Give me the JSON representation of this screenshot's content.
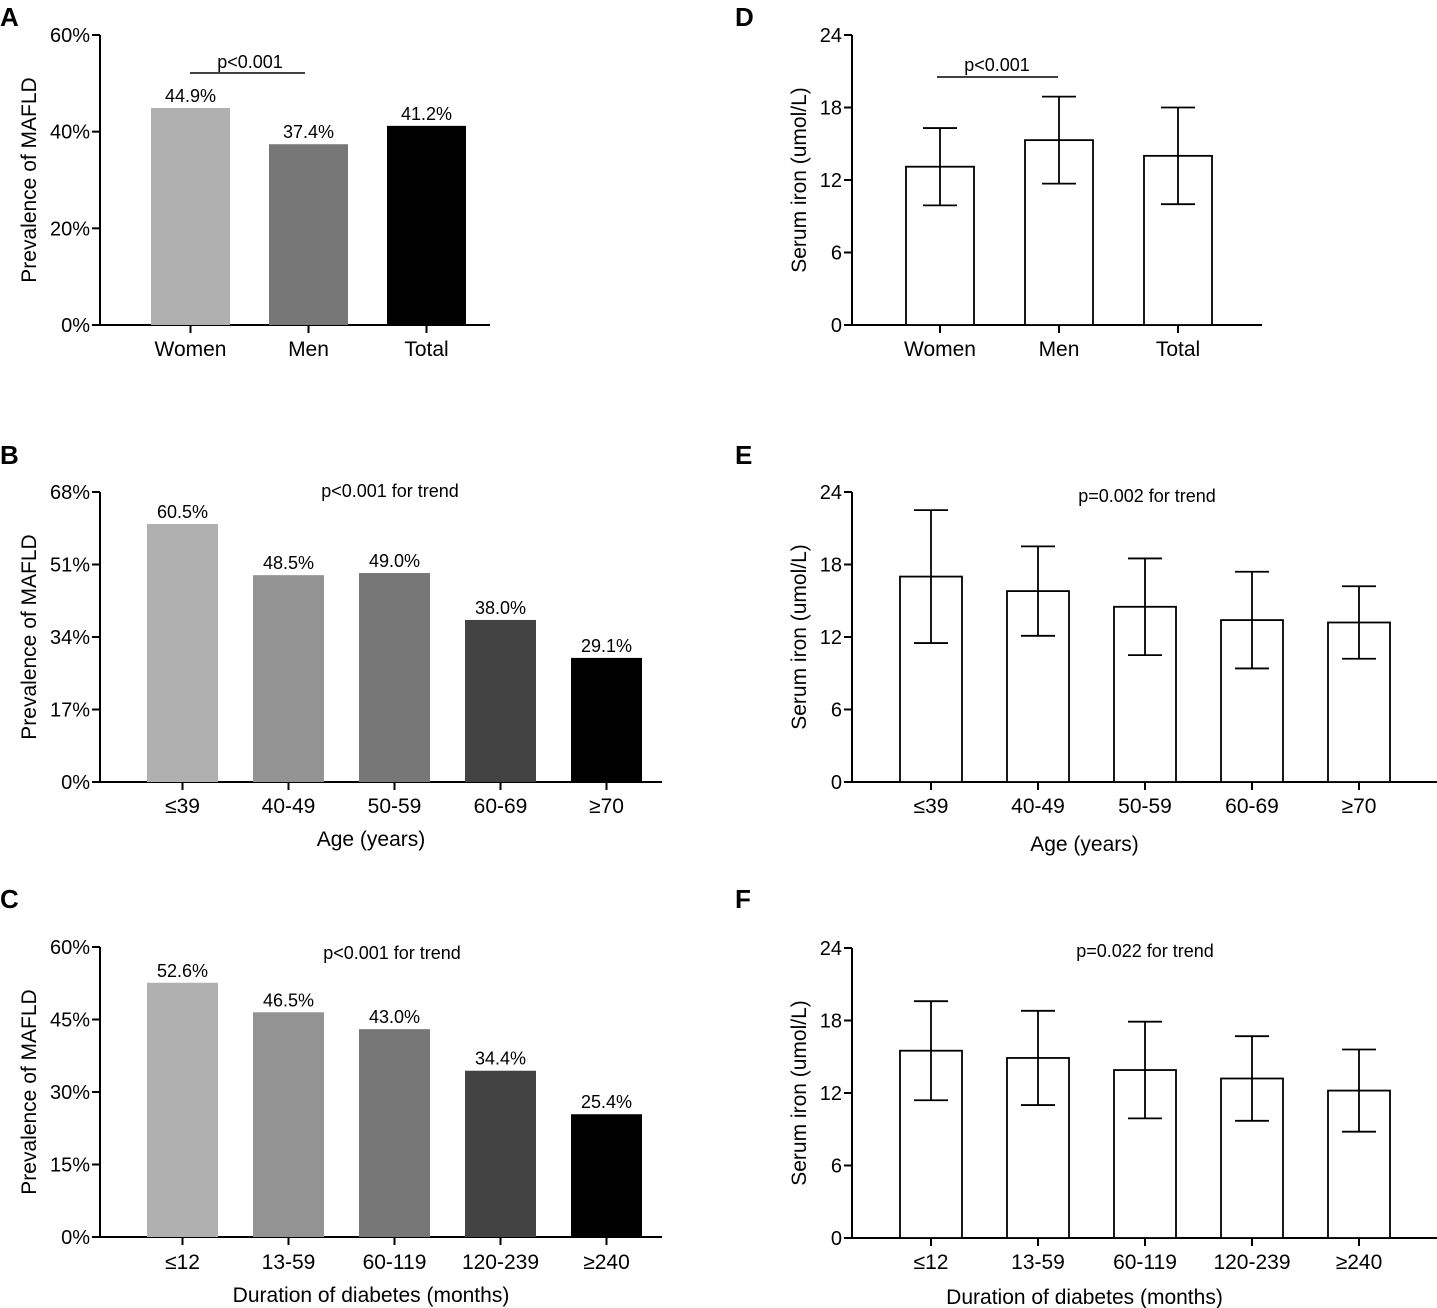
{
  "chart_data": [
    {
      "panel": "A",
      "type": "bar",
      "ylabel": "Prevalence of MAFLD",
      "xlabel": "",
      "ylim": [
        0,
        60
      ],
      "yticks": [
        "0%",
        "20%",
        "40%",
        "60%"
      ],
      "categories": [
        "Women",
        "Men",
        "Total"
      ],
      "values": [
        44.9,
        37.4,
        41.2
      ],
      "value_labels": [
        "44.9%",
        "37.4%",
        "41.2%"
      ],
      "colors": [
        "#b0b0b0",
        "#777777",
        "#000000"
      ],
      "annotation": "p<0.001",
      "bracket": [
        0,
        1
      ]
    },
    {
      "panel": "B",
      "type": "bar",
      "ylabel": "Prevalence of MAFLD",
      "xlabel": "Age (years)",
      "ylim": [
        0,
        68
      ],
      "yticks": [
        "0%",
        "17%",
        "34%",
        "51%",
        "68%"
      ],
      "categories": [
        "≤39",
        "40-49",
        "50-59",
        "60-69",
        "≥70"
      ],
      "values": [
        60.5,
        48.5,
        49.0,
        38.0,
        29.1
      ],
      "value_labels": [
        "60.5%",
        "48.5%",
        "49.0%",
        "38.0%",
        "29.1%"
      ],
      "colors": [
        "#b0b0b0",
        "#939393",
        "#777777",
        "#434343",
        "#000000"
      ],
      "annotation": "p<0.001 for trend"
    },
    {
      "panel": "C",
      "type": "bar",
      "ylabel": "Prevalence of MAFLD",
      "xlabel": "Duration of diabetes (months)",
      "ylim": [
        0,
        60
      ],
      "yticks": [
        "0%",
        "15%",
        "30%",
        "45%",
        "60%"
      ],
      "categories": [
        "≤12",
        "13-59",
        "60-119",
        "120-239",
        "≥240"
      ],
      "values": [
        52.6,
        46.5,
        43.0,
        34.4,
        25.4
      ],
      "value_labels": [
        "52.6%",
        "46.5%",
        "43.0%",
        "34.4%",
        "25.4%"
      ],
      "colors": [
        "#b0b0b0",
        "#939393",
        "#777777",
        "#434343",
        "#000000"
      ],
      "annotation": "p<0.001 for trend"
    },
    {
      "panel": "D",
      "type": "bar",
      "ylabel": "Serum iron (umol/L)",
      "xlabel": "",
      "ylim": [
        0,
        24
      ],
      "yticks": [
        "0",
        "6",
        "12",
        "18",
        "24"
      ],
      "categories": [
        "Women",
        "Men",
        "Total"
      ],
      "values": [
        13.1,
        15.3,
        14.0
      ],
      "errors": [
        3.2,
        3.6,
        4.0
      ],
      "annotation": "p<0.001",
      "bracket": [
        0,
        1
      ]
    },
    {
      "panel": "E",
      "type": "bar",
      "ylabel": "Serum iron (umol/L)",
      "xlabel": "Age (years)",
      "ylim": [
        0,
        24
      ],
      "yticks": [
        "0",
        "6",
        "12",
        "18",
        "24"
      ],
      "categories": [
        "≤39",
        "40-49",
        "50-59",
        "60-69",
        "≥70"
      ],
      "values": [
        17.0,
        15.8,
        14.5,
        13.4,
        13.2
      ],
      "errors": [
        5.5,
        3.7,
        4.0,
        4.0,
        3.0
      ],
      "annotation": "p=0.002 for trend"
    },
    {
      "panel": "F",
      "type": "bar",
      "ylabel": "Serum iron (umol/L)",
      "xlabel": "Duration of diabetes (months)",
      "ylim": [
        0,
        24
      ],
      "yticks": [
        "0",
        "6",
        "12",
        "18",
        "24"
      ],
      "categories": [
        "≤12",
        "13-59",
        "60-119",
        "120-239",
        "≥240"
      ],
      "values": [
        15.5,
        14.9,
        13.9,
        13.2,
        12.2
      ],
      "errors": [
        4.1,
        3.9,
        4.0,
        3.5,
        3.4
      ],
      "annotation": "p=0.022 for trend"
    }
  ]
}
